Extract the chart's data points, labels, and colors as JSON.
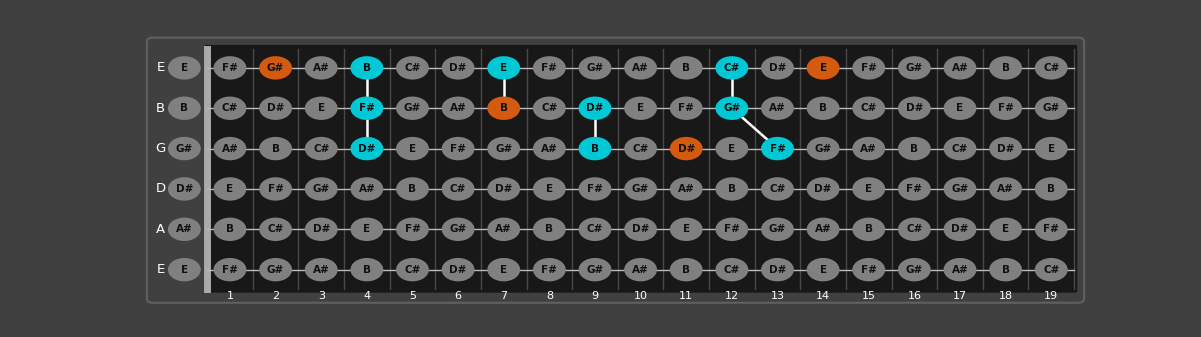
{
  "bg_color": "#404040",
  "fretboard_color": "#181818",
  "string_color": "#bbbbbb",
  "fret_color": "#484848",
  "nut_color": "#aaaaaa",
  "note_gray": "#808080",
  "note_text_color": "#111111",
  "cyan_color": "#00c8d4",
  "orange_color": "#d45a10",
  "num_frets": 19,
  "strings_labels": [
    "E",
    "B",
    "G",
    "D",
    "A",
    "E"
  ],
  "open_notes": [
    "E",
    "B",
    "G#",
    "D#",
    "A#",
    "E"
  ],
  "all_notes": [
    [
      "F#",
      "G#",
      "A#",
      "B",
      "C#",
      "D#",
      "E",
      "F#",
      "G#",
      "A#",
      "B",
      "C#",
      "D#",
      "E",
      "F#",
      "G#",
      "A#",
      "B",
      "C#"
    ],
    [
      "C#",
      "D#",
      "E",
      "F#",
      "G#",
      "A#",
      "B",
      "C#",
      "D#",
      "E",
      "F#",
      "G#",
      "A#",
      "B",
      "C#",
      "D#",
      "E",
      "F#",
      "G#"
    ],
    [
      "A#",
      "B",
      "C#",
      "D#",
      "E",
      "F#",
      "G#",
      "A#",
      "B",
      "C#",
      "D#",
      "E",
      "F#",
      "G#",
      "A#",
      "B",
      "C#",
      "D#",
      "E"
    ],
    [
      "E",
      "F#",
      "G#",
      "A#",
      "B",
      "C#",
      "D#",
      "E",
      "F#",
      "G#",
      "A#",
      "B",
      "C#",
      "D#",
      "E",
      "F#",
      "G#",
      "A#",
      "B"
    ],
    [
      "B",
      "C#",
      "D#",
      "E",
      "F#",
      "G#",
      "A#",
      "B",
      "C#",
      "D#",
      "E",
      "F#",
      "G#",
      "A#",
      "B",
      "C#",
      "D#",
      "E",
      "F#"
    ],
    [
      "F#",
      "G#",
      "A#",
      "B",
      "C#",
      "D#",
      "E",
      "F#",
      "G#",
      "A#",
      "B",
      "C#",
      "D#",
      "E",
      "F#",
      "G#",
      "A#",
      "B",
      "C#"
    ]
  ],
  "highlighted": {
    "0_2": "orange",
    "0_4": "cyan",
    "0_7": "cyan",
    "0_12": "cyan",
    "0_14": "orange",
    "1_4": "cyan",
    "1_7": "orange",
    "1_9": "cyan",
    "1_12": "cyan",
    "2_4": "cyan",
    "2_9": "cyan",
    "2_11": "orange",
    "2_13": "cyan"
  },
  "open_highlighted": {},
  "white_lines": [
    [
      [
        0,
        4
      ],
      [
        1,
        4
      ]
    ],
    [
      [
        1,
        4
      ],
      [
        2,
        4
      ]
    ],
    [
      [
        0,
        7
      ],
      [
        1,
        7
      ]
    ],
    [
      [
        1,
        9
      ],
      [
        2,
        9
      ]
    ],
    [
      [
        0,
        12
      ],
      [
        1,
        12
      ]
    ],
    [
      [
        1,
        12
      ],
      [
        2,
        13
      ]
    ]
  ],
  "inlay_open_circles": [
    [
      2,
      5
    ],
    [
      2,
      7
    ],
    [
      2,
      9
    ],
    [
      3,
      12
    ],
    [
      2,
      14
    ],
    [
      2,
      16
    ]
  ],
  "fret_numbers": [
    1,
    2,
    3,
    4,
    5,
    6,
    7,
    8,
    9,
    10,
    11,
    12,
    13,
    14,
    15,
    16,
    17,
    18,
    19
  ]
}
